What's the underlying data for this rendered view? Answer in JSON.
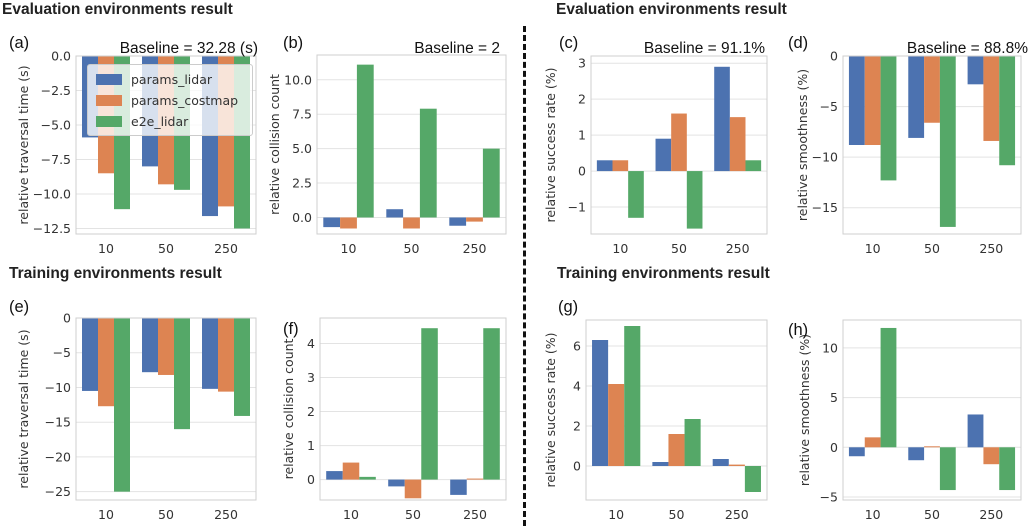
{
  "sections": {
    "eval_left": "Evaluation environments result",
    "eval_right": "Evaluation environments result",
    "train_left": "Training environments result",
    "train_right": "Training environments result"
  },
  "legend": [
    {
      "name": "params_lidar",
      "color": "#4c72b0"
    },
    {
      "name": "params_costmap",
      "color": "#dd8452"
    },
    {
      "name": "e2e_lidar",
      "color": "#55a868"
    }
  ],
  "chart_data": [
    {
      "label": "(a)",
      "type": "bar",
      "baseline": "Baseline = 32.28 (s)",
      "ylabel": "relative traversal time (s)",
      "categories": [
        "10",
        "50",
        "250"
      ],
      "ylim": [
        -12.9,
        0
      ],
      "yticks": [
        0.0,
        -2.5,
        -5.0,
        -7.5,
        -10.0,
        -12.5
      ],
      "ytick_labels": [
        "0.0",
        "−2.5",
        "−5.0",
        "−7.5",
        "−10.0",
        "−12.5"
      ],
      "series": [
        {
          "name": "params_lidar",
          "values": [
            -5.9,
            -8.0,
            -11.6
          ]
        },
        {
          "name": "params_costmap",
          "values": [
            -8.5,
            -9.3,
            -10.9
          ]
        },
        {
          "name": "e2e_lidar",
          "values": [
            -11.1,
            -9.7,
            -12.5
          ]
        }
      ]
    },
    {
      "label": "(b)",
      "type": "bar",
      "baseline": "Baseline = 2",
      "ylabel": "relative collision count",
      "categories": [
        "10",
        "50",
        "250"
      ],
      "ylim": [
        -1.2,
        11.8
      ],
      "yticks": [
        0.0,
        2.5,
        5.0,
        7.5,
        10.0
      ],
      "ytick_labels": [
        "0.0",
        "2.5",
        "5.0",
        "7.5",
        "10.0"
      ],
      "series": [
        {
          "name": "params_lidar",
          "values": [
            -0.7,
            0.6,
            -0.6
          ]
        },
        {
          "name": "params_costmap",
          "values": [
            -0.8,
            -0.8,
            -0.3
          ]
        },
        {
          "name": "e2e_lidar",
          "values": [
            11.1,
            7.9,
            5.0
          ]
        }
      ]
    },
    {
      "label": "(c)",
      "type": "bar",
      "baseline": "Baseline = 91.1%",
      "ylabel": "relative success rate (%)",
      "categories": [
        "10",
        "50",
        "250"
      ],
      "ylim": [
        -1.75,
        3.2
      ],
      "yticks": [
        -1,
        0,
        1,
        2,
        3
      ],
      "ytick_labels": [
        "−1",
        "0",
        "1",
        "2",
        "3"
      ],
      "series": [
        {
          "name": "params_lidar",
          "values": [
            0.3,
            0.9,
            2.9
          ]
        },
        {
          "name": "params_costmap",
          "values": [
            0.3,
            1.6,
            1.5
          ]
        },
        {
          "name": "e2e_lidar",
          "values": [
            -1.3,
            -1.6,
            0.3
          ]
        }
      ]
    },
    {
      "label": "(d)",
      "type": "bar",
      "baseline": "Baseline = 88.8%",
      "ylabel": "relative smoothness (%)",
      "categories": [
        "10",
        "50",
        "250"
      ],
      "ylim": [
        -17.6,
        0
      ],
      "yticks": [
        0,
        -5,
        -10,
        -15
      ],
      "ytick_labels": [
        "0",
        "−5",
        "−10",
        "−15"
      ],
      "series": [
        {
          "name": "params_lidar",
          "values": [
            -8.8,
            -8.1,
            -2.8
          ]
        },
        {
          "name": "params_costmap",
          "values": [
            -8.8,
            -6.6,
            -8.4
          ]
        },
        {
          "name": "e2e_lidar",
          "values": [
            -12.3,
            -16.9,
            -10.8
          ]
        }
      ]
    },
    {
      "label": "(e)",
      "type": "bar",
      "baseline": "",
      "ylabel": "relative traversal time (s)",
      "categories": [
        "10",
        "50",
        "250"
      ],
      "ylim": [
        -26.2,
        0
      ],
      "yticks": [
        0,
        -5,
        -10,
        -15,
        -20,
        -25
      ],
      "ytick_labels": [
        "0",
        "−5",
        "−10",
        "−15",
        "−20",
        "−25"
      ],
      "series": [
        {
          "name": "params_lidar",
          "values": [
            -10.5,
            -7.8,
            -10.2
          ]
        },
        {
          "name": "params_costmap",
          "values": [
            -12.7,
            -8.2,
            -10.6
          ]
        },
        {
          "name": "e2e_lidar",
          "values": [
            -25.0,
            -16.0,
            -14.1
          ]
        }
      ]
    },
    {
      "label": "(f)",
      "type": "bar",
      "baseline": "",
      "ylabel": "relative collision count",
      "categories": [
        "10",
        "50",
        "250"
      ],
      "ylim": [
        -0.6,
        4.75
      ],
      "yticks": [
        0,
        1,
        2,
        3,
        4
      ],
      "ytick_labels": [
        "0",
        "1",
        "2",
        "3",
        "4"
      ],
      "series": [
        {
          "name": "params_lidar",
          "values": [
            0.25,
            -0.2,
            -0.45
          ]
        },
        {
          "name": "params_costmap",
          "values": [
            0.5,
            -0.55,
            0.03
          ]
        },
        {
          "name": "e2e_lidar",
          "values": [
            0.08,
            4.45,
            4.45
          ]
        }
      ]
    },
    {
      "label": "(g)",
      "type": "bar",
      "baseline": "",
      "ylabel": "relative success rate (%)",
      "categories": [
        "10",
        "50",
        "250"
      ],
      "ylim": [
        -1.7,
        7.3
      ],
      "yticks": [
        0,
        2,
        4,
        6
      ],
      "ytick_labels": [
        "0",
        "2",
        "4",
        "6"
      ],
      "series": [
        {
          "name": "params_lidar",
          "values": [
            6.3,
            0.2,
            0.35
          ]
        },
        {
          "name": "params_costmap",
          "values": [
            4.1,
            1.6,
            0.07
          ]
        },
        {
          "name": "e2e_lidar",
          "values": [
            7.0,
            2.35,
            -1.3
          ]
        }
      ]
    },
    {
      "label": "(h)",
      "type": "bar",
      "baseline": "",
      "ylabel": "relative smoothness (%)",
      "categories": [
        "10",
        "50",
        "250"
      ],
      "ylim": [
        -5.3,
        12.8
      ],
      "yticks": [
        -5,
        0,
        5,
        10
      ],
      "ytick_labels": [
        "−5",
        "0",
        "5",
        "10"
      ],
      "series": [
        {
          "name": "params_lidar",
          "values": [
            -0.9,
            -1.3,
            3.3
          ]
        },
        {
          "name": "params_costmap",
          "values": [
            1.0,
            0.1,
            -1.7
          ]
        },
        {
          "name": "e2e_lidar",
          "values": [
            12.0,
            -4.3,
            -4.3
          ]
        }
      ]
    }
  ]
}
